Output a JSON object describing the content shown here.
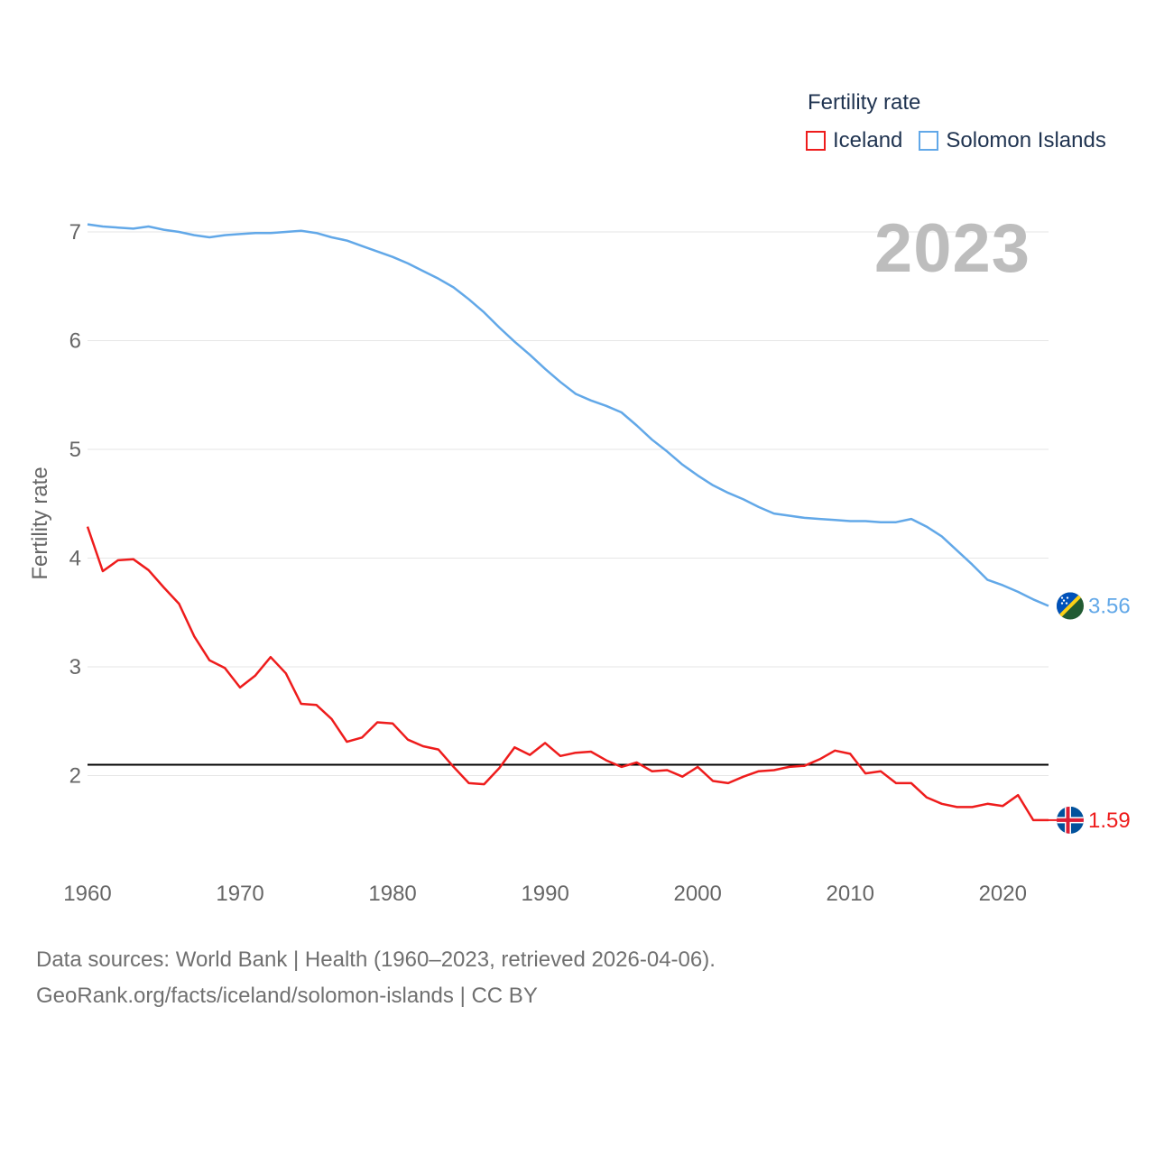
{
  "legend": {
    "title": "Fertility rate",
    "items": [
      {
        "label": "Iceland",
        "color": "#ee1c1c"
      },
      {
        "label": "Solomon Islands",
        "color": "#62a8e8"
      }
    ]
  },
  "year_display": "2023",
  "footer": {
    "line1": "Data sources: World Bank | Health (1960–2023, retrieved 2026-04-06).",
    "line2": "GeoRank.org/facts/iceland/solomon-islands | CC BY"
  },
  "colors": {
    "iceland": "#ee1c1c",
    "solomon": "#62a8e8",
    "reference": "#000000",
    "grid": "#e6e6e6",
    "axis_text": "#666666"
  },
  "chart_data": {
    "type": "line",
    "ylabel": "Fertility rate",
    "xlabel": "",
    "xlim": [
      1960,
      2023
    ],
    "ylim": [
      1.2,
      7.3
    ],
    "x_ticks": [
      1960,
      1970,
      1980,
      1990,
      2000,
      2010,
      2020
    ],
    "y_ticks": [
      2,
      3,
      4,
      5,
      6,
      7
    ],
    "reference_line": 2.1,
    "x": [
      1960,
      1961,
      1962,
      1963,
      1964,
      1965,
      1966,
      1967,
      1968,
      1969,
      1970,
      1971,
      1972,
      1973,
      1974,
      1975,
      1976,
      1977,
      1978,
      1979,
      1980,
      1981,
      1982,
      1983,
      1984,
      1985,
      1986,
      1987,
      1988,
      1989,
      1990,
      1991,
      1992,
      1993,
      1994,
      1995,
      1996,
      1997,
      1998,
      1999,
      2000,
      2001,
      2002,
      2003,
      2004,
      2005,
      2006,
      2007,
      2008,
      2009,
      2010,
      2011,
      2012,
      2013,
      2014,
      2015,
      2016,
      2017,
      2018,
      2019,
      2020,
      2021,
      2022,
      2023
    ],
    "series": [
      {
        "name": "Iceland",
        "end_label": "1.59",
        "values": [
          4.29,
          3.88,
          3.98,
          3.99,
          3.89,
          3.73,
          3.58,
          3.28,
          3.06,
          2.99,
          2.81,
          2.92,
          3.09,
          2.94,
          2.66,
          2.65,
          2.52,
          2.31,
          2.35,
          2.49,
          2.48,
          2.33,
          2.27,
          2.24,
          2.08,
          1.93,
          1.92,
          2.07,
          2.26,
          2.19,
          2.3,
          2.18,
          2.21,
          2.22,
          2.14,
          2.08,
          2.12,
          2.04,
          2.05,
          1.99,
          2.08,
          1.95,
          1.93,
          1.99,
          2.04,
          2.05,
          2.08,
          2.09,
          2.15,
          2.23,
          2.2,
          2.02,
          2.04,
          1.93,
          1.93,
          1.8,
          1.74,
          1.71,
          1.71,
          1.74,
          1.72,
          1.82,
          1.59,
          1.59
        ]
      },
      {
        "name": "Solomon Islands",
        "end_label": "3.56",
        "values": [
          7.07,
          7.05,
          7.04,
          7.03,
          7.05,
          7.02,
          7.0,
          6.97,
          6.95,
          6.97,
          6.98,
          6.99,
          6.99,
          7.0,
          7.01,
          6.99,
          6.95,
          6.92,
          6.87,
          6.82,
          6.77,
          6.71,
          6.64,
          6.57,
          6.49,
          6.38,
          6.26,
          6.12,
          5.99,
          5.87,
          5.74,
          5.62,
          5.51,
          5.45,
          5.4,
          5.34,
          5.22,
          5.09,
          4.98,
          4.86,
          4.76,
          4.67,
          4.6,
          4.54,
          4.47,
          4.41,
          4.39,
          4.37,
          4.36,
          4.35,
          4.34,
          4.34,
          4.33,
          4.33,
          4.36,
          4.29,
          4.2,
          4.07,
          3.94,
          3.8,
          3.75,
          3.69,
          3.62,
          3.56
        ]
      }
    ]
  }
}
